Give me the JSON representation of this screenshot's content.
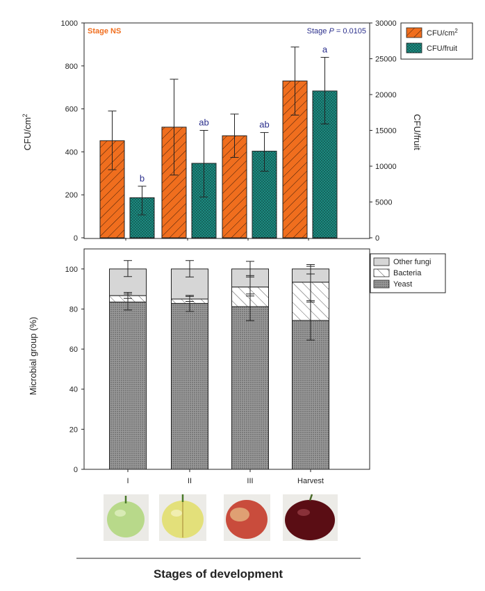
{
  "top_chart": {
    "type": "bar",
    "categories": [
      "I",
      "II",
      "III",
      "Harvest"
    ],
    "left_axis": {
      "label_main": "CFU/cm",
      "label_sup": "2",
      "ylim": [
        0,
        1000
      ],
      "ticks": [
        0,
        200,
        400,
        600,
        800,
        1000
      ]
    },
    "right_axis": {
      "label": "CFU/fruit",
      "ylim": [
        0,
        30000
      ],
      "ticks": [
        0,
        5000,
        10000,
        15000,
        20000,
        25000,
        30000
      ]
    },
    "annotation_left": "Stage NS",
    "annotation_right_prefix": "Stage ",
    "annotation_right_p": "P",
    "annotation_right_suffix": " = 0.0105",
    "legend": [
      {
        "label_main": "CFU/cm",
        "label_sup": "2",
        "color": "#f06e1e",
        "pattern": "diagonal-hatch"
      },
      {
        "label_main": "CFU/fruit",
        "label_sup": "",
        "color": "#1d8a80",
        "pattern": "dots"
      }
    ]
  },
  "bottom_chart": {
    "type": "bar",
    "stacked": true,
    "categories": [
      "I",
      "II",
      "III",
      "Harvest"
    ],
    "ylabel": "Microbial group (%)",
    "ylim": [
      0,
      110
    ],
    "ticks": [
      0,
      20,
      40,
      60,
      80,
      100
    ],
    "legend": [
      {
        "label": "Other fungi",
        "color": "#d4d4d4",
        "pattern": "solid"
      },
      {
        "label": "Bacteria",
        "color": "#ffffff",
        "pattern": "diagonal-hatch"
      },
      {
        "label": "Yeast",
        "color": "#8c8c8c",
        "pattern": "crosshatch"
      }
    ]
  },
  "xaxis_title": "Stages of development",
  "images": [
    {
      "name": "stage-i-cherry",
      "fill": "#b8d98a"
    },
    {
      "name": "stage-ii-cherry",
      "fill": "#e3e07a"
    },
    {
      "name": "stage-iii-cherry",
      "fill": "#c94c3c"
    },
    {
      "name": "harvest-cherry",
      "fill": "#5a0d14"
    }
  ],
  "chart_data": [
    {
      "type": "bar",
      "categories": [
        "I",
        "II",
        "III",
        "Harvest"
      ],
      "ylim": [
        0,
        1000
      ],
      "series": [
        {
          "name": "CFU/cm2",
          "axis": "left",
          "values": [
            452,
            515,
            475,
            730
          ],
          "error_low": [
            317,
            292,
            374,
            571
          ],
          "error_high": [
            590,
            738,
            576,
            888
          ]
        },
        {
          "name": "CFU/fruit",
          "axis": "right",
          "values": [
            5600,
            10400,
            12100,
            20500
          ],
          "error_low": [
            3200,
            5700,
            9300,
            15900
          ],
          "error_high": [
            7200,
            15000,
            14700,
            25200
          ],
          "letters": [
            "b",
            "ab",
            "ab",
            "a"
          ]
        }
      ]
    },
    {
      "type": "bar",
      "stacked": true,
      "categories": [
        "I",
        "II",
        "III",
        "Harvest"
      ],
      "ylim": [
        0,
        110
      ],
      "series": [
        {
          "name": "Yeast",
          "values": [
            83.5,
            82.8,
            81.2,
            74.3
          ],
          "error_low": [
            79.5,
            78.8,
            74.2,
            64.5
          ],
          "error_high": [
            87.5,
            86.8,
            87.5,
            84.2
          ]
        },
        {
          "name": "Bacteria",
          "values": [
            3.2,
            2.2,
            9.8,
            19.1
          ],
          "error_low": [
            85.3,
            83.8,
            86.5,
            83.5
          ],
          "error_high": [
            88.3,
            86.3,
            96.7,
            102.2
          ]
        },
        {
          "name": "Other fungi",
          "values": [
            13.3,
            15.0,
            9.0,
            6.6
          ],
          "error_low": [
            96.2,
            96.0,
            96.0,
            97.5
          ],
          "error_high": [
            104.2,
            104.2,
            103.8,
            101.3
          ]
        }
      ]
    }
  ]
}
